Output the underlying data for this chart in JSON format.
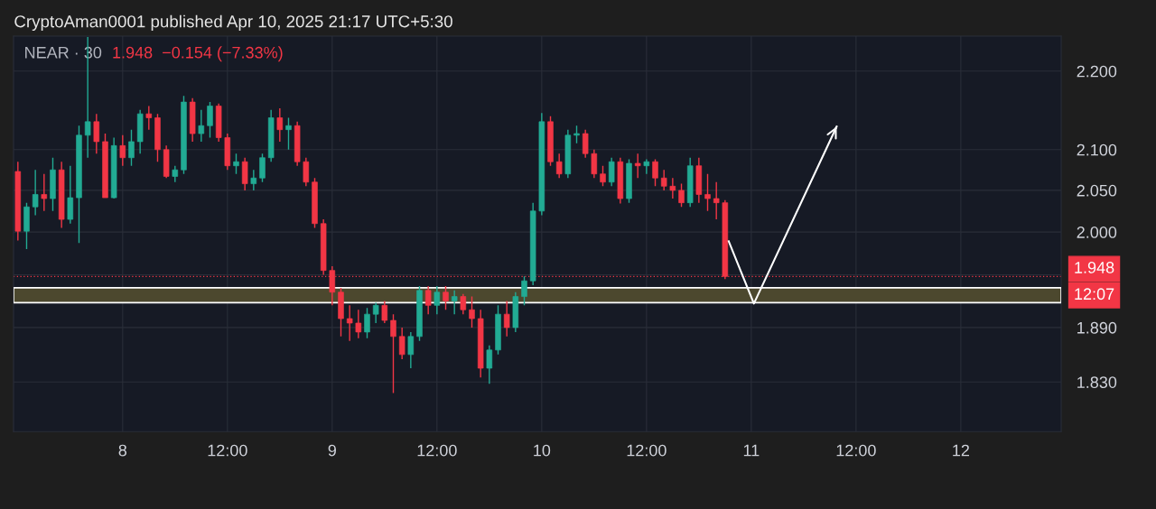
{
  "chart_data": {
    "type": "candlestick",
    "title": "CryptoAman0001 published Apr 10, 2025 21:17 UTC+5:30",
    "subtitle": "NEAR · 30",
    "annotations": [
      "1.948  −0.154 (−7.33%)",
      "12:07"
    ],
    "colors": [
      "#f23645",
      "#22ab94",
      "#22ab94",
      "#f23645",
      "#22ab94",
      "#f23645",
      "#22ab94",
      "#22ab94",
      "#22ab94",
      "#f23645",
      "#f23645",
      "#22ab94",
      "#f23645",
      "#22ab94",
      "#22ab94",
      "#f23645",
      "#f23645",
      "#f23645",
      "#22ab94",
      "#22ab94",
      "#f23645",
      "#22ab94",
      "#22ab94",
      "#f23645",
      "#f23645",
      "#22ab94",
      "#f23645",
      "#22ab94",
      "#22ab94",
      "#22ab94",
      "#f23645",
      "#22ab94",
      "#f23645",
      "#f23645",
      "#f23645",
      "#f23645",
      "#f23645",
      "#f23645",
      "#f23645",
      "#f23645",
      "#22ab94",
      "#22ab94",
      "#f23645",
      "#f23645",
      "#f23645",
      "#22ab94",
      "#22ab94",
      "#f23645",
      "#22ab94",
      "#f23645",
      "#22ab94",
      "#f23645",
      "#f23645",
      "#f23645",
      "#22ab94",
      "#22ab94",
      "#f23645",
      "#22ab94",
      "#22ab94",
      "#22ab94",
      "#22ab94",
      "#f23645",
      "#f23645",
      "#22ab94",
      "#22ab94",
      "#f23645",
      "#f23645",
      "#f23645",
      "#22ab94",
      "#f23645",
      "#22ab94",
      "#f23645",
      "#22ab94",
      "#f23645",
      "#f23645",
      "#f23645",
      "#f23645",
      "#22ab94",
      "#f23645",
      "#f23645",
      "#f23645",
      "#f23645"
    ],
    "x": [
      "2025-04-07T12:00",
      "2025-04-07T13:00",
      "2025-04-07T14:00",
      "2025-04-07T15:00",
      "2025-04-07T16:00",
      "2025-04-07T17:00",
      "2025-04-07T18:00",
      "2025-04-07T19:00",
      "2025-04-07T20:00",
      "2025-04-07T21:00",
      "2025-04-07T22:00",
      "2025-04-07T23:00",
      "2025-04-08T00:00",
      "2025-04-08T01:00",
      "2025-04-08T02:00",
      "2025-04-08T03:00",
      "2025-04-08T04:00",
      "2025-04-08T05:00",
      "2025-04-08T06:00",
      "2025-04-08T07:00",
      "2025-04-08T08:00",
      "2025-04-08T09:00",
      "2025-04-08T10:00",
      "2025-04-08T11:00",
      "2025-04-08T12:00",
      "2025-04-08T13:00",
      "2025-04-08T14:00",
      "2025-04-08T15:00",
      "2025-04-08T16:00",
      "2025-04-08T17:00",
      "2025-04-08T18:00",
      "2025-04-08T19:00",
      "2025-04-08T20:00",
      "2025-04-08T21:00",
      "2025-04-08T22:00",
      "2025-04-08T23:00",
      "2025-04-09T00:00",
      "2025-04-09T01:00",
      "2025-04-09T02:00",
      "2025-04-09T03:00",
      "2025-04-09T04:00",
      "2025-04-09T05:00",
      "2025-04-09T06:00",
      "2025-04-09T07:00",
      "2025-04-09T08:00",
      "2025-04-09T09:00",
      "2025-04-09T10:00",
      "2025-04-09T11:00",
      "2025-04-09T12:00",
      "2025-04-09T13:00",
      "2025-04-09T14:00",
      "2025-04-09T15:00",
      "2025-04-09T16:00",
      "2025-04-09T17:00",
      "2025-04-09T18:00",
      "2025-04-09T19:00",
      "2025-04-09T20:00",
      "2025-04-09T21:00",
      "2025-04-09T22:00",
      "2025-04-09T23:00",
      "2025-04-10T00:00",
      "2025-04-10T01:00",
      "2025-04-10T02:00",
      "2025-04-10T03:00",
      "2025-04-10T04:00",
      "2025-04-10T05:00",
      "2025-04-10T06:00",
      "2025-04-10T07:00",
      "2025-04-10T08:00",
      "2025-04-10T09:00",
      "2025-04-10T10:00",
      "2025-04-10T11:00",
      "2025-04-10T12:00",
      "2025-04-10T13:00",
      "2025-04-10T14:00",
      "2025-04-10T15:00",
      "2025-04-10T16:00",
      "2025-04-10T17:00",
      "2025-04-10T18:00",
      "2025-04-10T19:00",
      "2025-04-10T20:00",
      "2025-04-10T21:00"
    ],
    "ohlc": [
      [
        2.073,
        2.085,
        1.99,
        2.001
      ],
      [
        2.001,
        2.035,
        1.98,
        2.03
      ],
      [
        2.03,
        2.075,
        2.02,
        2.045
      ],
      [
        2.045,
        2.07,
        2.025,
        2.04
      ],
      [
        2.04,
        2.09,
        2.025,
        2.075
      ],
      [
        2.075,
        2.085,
        2.005,
        2.015
      ],
      [
        2.015,
        2.08,
        2.01,
        2.041
      ],
      [
        2.041,
        2.13,
        1.987,
        2.118
      ],
      [
        2.118,
        2.245,
        2.09,
        2.135
      ],
      [
        2.135,
        2.145,
        2.095,
        2.11
      ],
      [
        2.11,
        2.12,
        2.041,
        2.041
      ],
      [
        2.041,
        2.115,
        2.04,
        2.105
      ],
      [
        2.105,
        2.118,
        2.08,
        2.09
      ],
      [
        2.09,
        2.125,
        2.08,
        2.11
      ],
      [
        2.11,
        2.15,
        2.095,
        2.145
      ],
      [
        2.145,
        2.155,
        2.125,
        2.14
      ],
      [
        2.14,
        2.145,
        2.085,
        2.1
      ],
      [
        2.1,
        2.105,
        2.065,
        2.067
      ],
      [
        2.067,
        2.08,
        2.06,
        2.075
      ],
      [
        2.075,
        2.168,
        2.07,
        2.16
      ],
      [
        2.16,
        2.165,
        2.11,
        2.12
      ],
      [
        2.12,
        2.15,
        2.11,
        2.13
      ],
      [
        2.13,
        2.16,
        2.115,
        2.155
      ],
      [
        2.155,
        2.158,
        2.11,
        2.115
      ],
      [
        2.115,
        2.12,
        2.075,
        2.08
      ],
      [
        2.08,
        2.095,
        2.07,
        2.085
      ],
      [
        2.085,
        2.09,
        2.05,
        2.058
      ],
      [
        2.058,
        2.075,
        2.05,
        2.065
      ],
      [
        2.065,
        2.095,
        2.06,
        2.09
      ],
      [
        2.09,
        2.15,
        2.085,
        2.14
      ],
      [
        2.14,
        2.152,
        2.11,
        2.125
      ],
      [
        2.125,
        2.14,
        2.1,
        2.13
      ],
      [
        2.13,
        2.135,
        2.08,
        2.085
      ],
      [
        2.085,
        2.09,
        2.055,
        2.06
      ],
      [
        2.06,
        2.065,
        2.005,
        2.01
      ],
      [
        2.01,
        2.015,
        1.95,
        1.955
      ],
      [
        1.955,
        1.96,
        1.915,
        1.93
      ],
      [
        1.93,
        1.935,
        1.88,
        1.9
      ],
      [
        1.9,
        1.915,
        1.875,
        1.895
      ],
      [
        1.895,
        1.91,
        1.878,
        1.885
      ],
      [
        1.885,
        1.912,
        1.878,
        1.905
      ],
      [
        1.905,
        1.918,
        1.895,
        1.915
      ],
      [
        1.915,
        1.92,
        1.895,
        1.898
      ],
      [
        1.898,
        1.905,
        1.818,
        1.88
      ],
      [
        1.88,
        1.89,
        1.855,
        1.86
      ],
      [
        1.86,
        1.885,
        1.845,
        1.88
      ],
      [
        1.88,
        1.937,
        1.875,
        1.932
      ],
      [
        1.932,
        1.937,
        1.905,
        1.915
      ],
      [
        1.915,
        1.937,
        1.905,
        1.93
      ],
      [
        1.93,
        1.937,
        1.91,
        1.92
      ],
      [
        1.92,
        1.932,
        1.905,
        1.925
      ],
      [
        1.925,
        1.928,
        1.905,
        1.91
      ],
      [
        1.91,
        1.925,
        1.89,
        1.9
      ],
      [
        1.9,
        1.91,
        1.835,
        1.845
      ],
      [
        1.845,
        1.87,
        1.828,
        1.865
      ],
      [
        1.865,
        1.915,
        1.86,
        1.905
      ],
      [
        1.905,
        1.92,
        1.88,
        1.89
      ],
      [
        1.89,
        1.93,
        1.885,
        1.925
      ],
      [
        1.925,
        1.948,
        1.915,
        1.943
      ],
      [
        1.943,
        2.035,
        1.938,
        2.025
      ],
      [
        2.025,
        2.146,
        2.02,
        2.135
      ],
      [
        2.135,
        2.142,
        2.08,
        2.085
      ],
      [
        2.085,
        2.095,
        2.065,
        2.07
      ],
      [
        2.07,
        2.125,
        2.065,
        2.118
      ],
      [
        2.118,
        2.13,
        2.108,
        2.12
      ],
      [
        2.12,
        2.125,
        2.09,
        2.095
      ],
      [
        2.095,
        2.1,
        2.065,
        2.07
      ],
      [
        2.07,
        2.08,
        2.055,
        2.06
      ],
      [
        2.06,
        2.09,
        2.055,
        2.085
      ],
      [
        2.085,
        2.09,
        2.034,
        2.04
      ],
      [
        2.04,
        2.088,
        2.035,
        2.083
      ],
      [
        2.083,
        2.095,
        2.065,
        2.08
      ],
      [
        2.08,
        2.088,
        2.07,
        2.085
      ],
      [
        2.085,
        2.088,
        2.055,
        2.065
      ],
      [
        2.065,
        2.075,
        2.05,
        2.055
      ],
      [
        2.055,
        2.065,
        2.04,
        2.05
      ],
      [
        2.05,
        2.058,
        2.03,
        2.035
      ],
      [
        2.035,
        2.09,
        2.03,
        2.08
      ],
      [
        2.08,
        2.09,
        2.035,
        2.045
      ],
      [
        2.045,
        2.07,
        2.025,
        2.04
      ],
      [
        2.04,
        2.06,
        2.015,
        2.035
      ],
      [
        2.035,
        2.038,
        1.945,
        1.948
      ]
    ],
    "series": [
      {
        "type": "line",
        "color": "#ffffff",
        "x": [
          "2025-04-10T21:25",
          "2025-04-11T00:18",
          "2025-04-11T09:47"
        ],
        "values": [
          1.989,
          1.917,
          2.129
        ]
      }
    ],
    "log": "y",
    "xlim": [
      "2025-04-07T11:30",
      "2025-04-12T11:30"
    ],
    "xticks": [
      {
        "value": "2025-04-08",
        "label": "8"
      },
      {
        "value": "2025-04-08T12:00",
        "label": "12:00"
      },
      {
        "value": "2025-04-09",
        "label": "9"
      },
      {
        "value": "2025-04-09T12:00",
        "label": "12:00"
      },
      {
        "value": "2025-04-10",
        "label": "10"
      },
      {
        "value": "2025-04-10T12:00",
        "label": "12:00"
      },
      {
        "value": "2025-04-11",
        "label": "11"
      },
      {
        "value": "2025-04-11T12:00",
        "label": "12:00"
      },
      {
        "value": "2025-04-12",
        "label": "12"
      }
    ],
    "ylim": [
      1.777,
      2.246
    ],
    "yticks": [
      {
        "value": 1.83,
        "label": "1.830"
      },
      {
        "value": 1.89,
        "label": "1.890"
      },
      {
        "value": 1.95,
        "label": null
      },
      {
        "value": 2.0,
        "label": "2.000"
      },
      {
        "value": 2.05,
        "label": "2.050"
      },
      {
        "value": 2.1,
        "label": "2.100"
      },
      {
        "value": 2.2,
        "label": "2.200"
      }
    ],
    "ref_lines": [
      {
        "axis": "y",
        "value": 1.948,
        "label": "1.948",
        "color": "#f23645"
      }
    ],
    "bands": [
      {
        "axis": "y",
        "from": 1.918,
        "to": 1.935,
        "color": "#4c482e"
      }
    ],
    "grid": true
  }
}
